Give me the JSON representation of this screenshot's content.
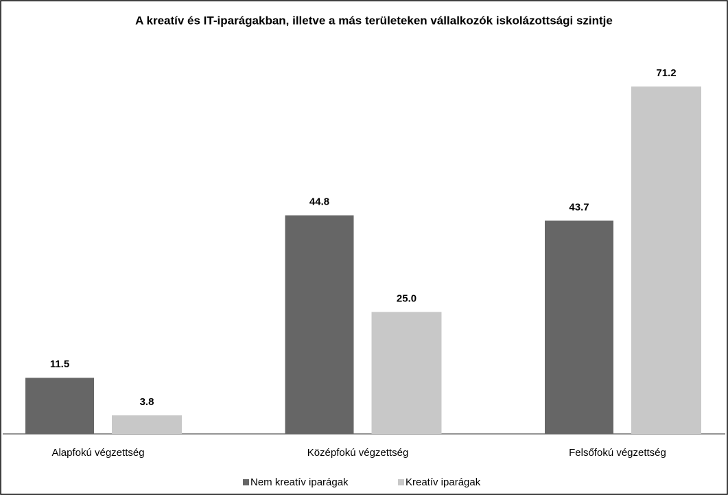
{
  "chart_data": {
    "type": "bar",
    "title": "A kreatív és IT-iparágakban,  illetve a más területeken vállalkozók iskolázottsági szintje",
    "categories": [
      "Alapfokú végzettség",
      "Középfokú végzettség",
      "Felsőfokú végzettség"
    ],
    "series": [
      {
        "name": "Nem kreatív iparágak",
        "color": "#666666",
        "values": [
          11.5,
          44.8,
          43.7
        ],
        "value_labels": [
          "11.5",
          "44.8",
          "43.7"
        ]
      },
      {
        "name": "Kreatív iparágak",
        "color": "#c8c8c8",
        "values": [
          3.8,
          25.0,
          71.2
        ],
        "value_labels": [
          "3.8",
          "25.0",
          "71.2"
        ]
      }
    ],
    "legend": "bottom"
  }
}
